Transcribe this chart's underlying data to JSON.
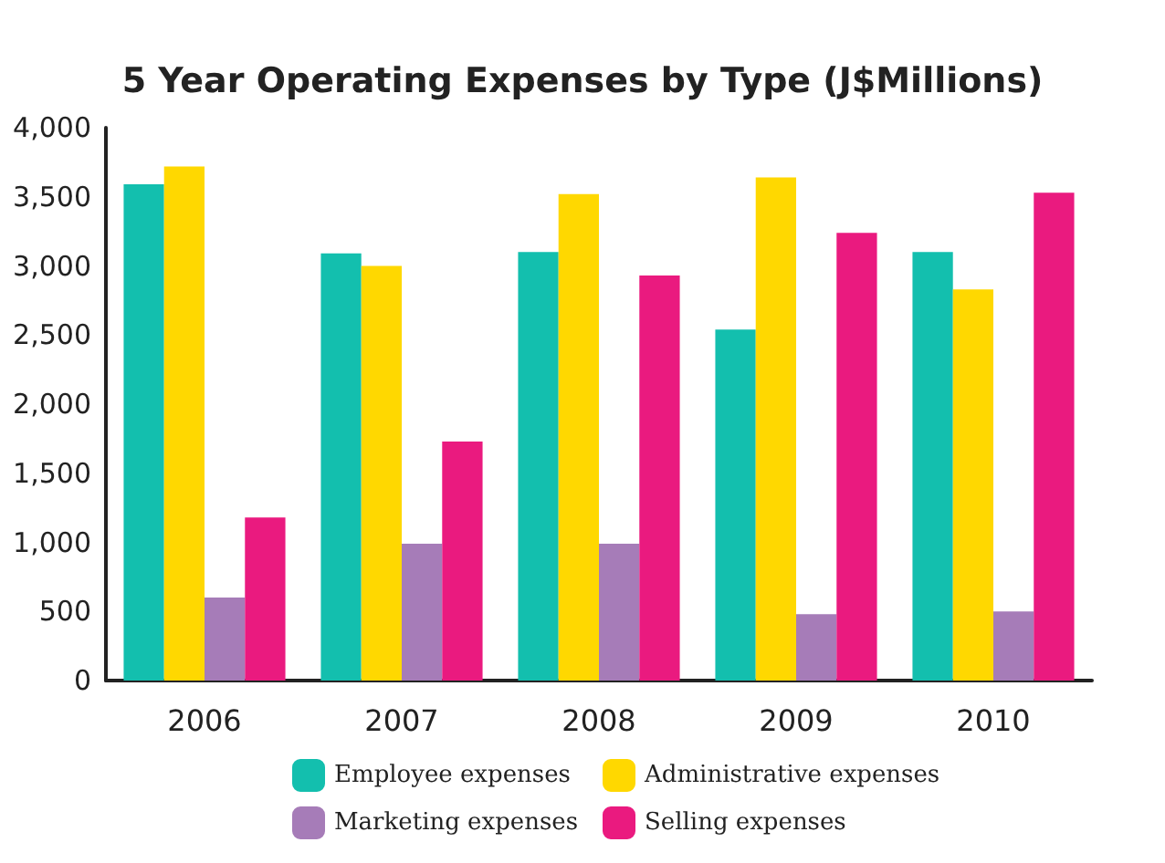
{
  "chart_data": {
    "type": "bar",
    "title": "5 Year Operating Expenses by Type (J$Millions)",
    "categories": [
      "2006",
      "2007",
      "2008",
      "2009",
      "2010"
    ],
    "series": [
      {
        "name": "Employee expenses",
        "color": "#13bfae",
        "values": [
          3590,
          3090,
          3100,
          2540,
          3100
        ]
      },
      {
        "name": "Administrative expenses",
        "color": "#ffd800",
        "values": [
          3720,
          3000,
          3520,
          3640,
          2830
        ]
      },
      {
        "name": "Marketing expenses",
        "color": "#a67cb8",
        "values": [
          600,
          990,
          990,
          480,
          500
        ]
      },
      {
        "name": "Selling expenses",
        "color": "#ea1a7f",
        "values": [
          1180,
          1730,
          2930,
          3240,
          3530
        ]
      }
    ],
    "ylim": [
      0,
      4000
    ],
    "yticks": [
      {
        "value": 0,
        "label": "0"
      },
      {
        "value": 500,
        "label": "500"
      },
      {
        "value": 1000,
        "label": "1,000"
      },
      {
        "value": 1500,
        "label": "1,500"
      },
      {
        "value": 2000,
        "label": "2,000"
      },
      {
        "value": 2500,
        "label": "2,500"
      },
      {
        "value": 3000,
        "label": "3,000"
      },
      {
        "value": 3500,
        "label": "3,500"
      },
      {
        "value": 4000,
        "label": "4,000"
      }
    ],
    "grid": false,
    "legend": "bottom"
  }
}
